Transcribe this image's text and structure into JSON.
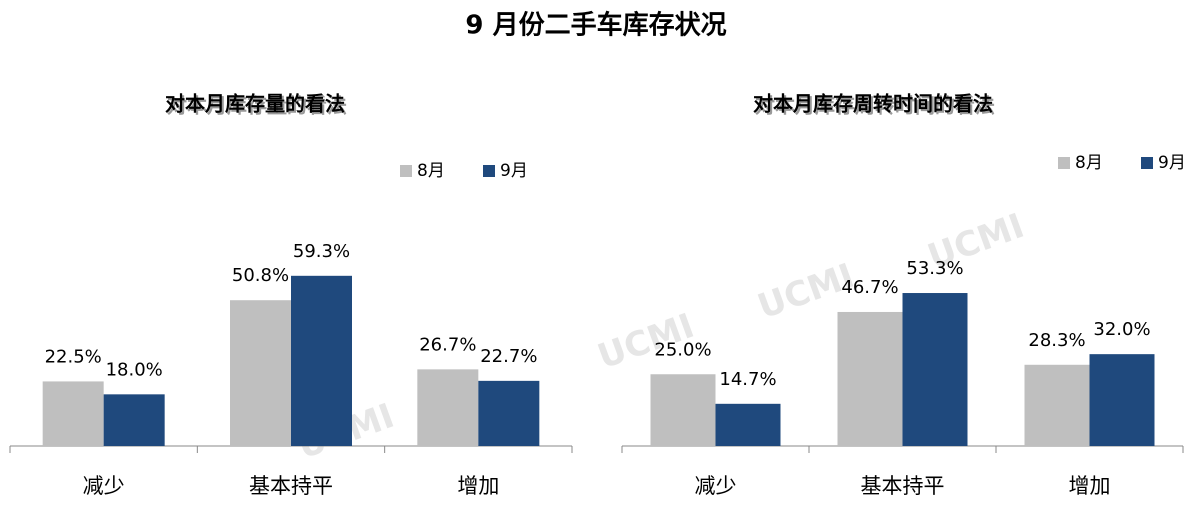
{
  "title": "9 月份二手车库存状况",
  "watermark": "UCMI",
  "chart_data": [
    {
      "type": "bar",
      "title": "对本月库存量的看法",
      "categories": [
        "减少",
        "基本持平",
        "增加"
      ],
      "series": [
        {
          "name": "8月",
          "color": "#bfbfbf",
          "values": [
            22.5,
            50.8,
            26.7
          ],
          "value_labels": [
            "22.5%",
            "50.8%",
            "26.7%"
          ]
        },
        {
          "name": "9月",
          "color": "#1f497d",
          "values": [
            18.0,
            59.3,
            22.7
          ],
          "value_labels": [
            "18.0%",
            "59.3%",
            "22.7%"
          ]
        }
      ]
    },
    {
      "type": "bar",
      "title": "对本月库存周转时间的看法",
      "categories": [
        "减少",
        "基本持平",
        "增加"
      ],
      "series": [
        {
          "name": "8月",
          "color": "#bfbfbf",
          "values": [
            25.0,
            46.7,
            28.3
          ],
          "value_labels": [
            "25.0%",
            "46.7%",
            "28.3%"
          ]
        },
        {
          "name": "9月",
          "color": "#1f497d",
          "values": [
            14.7,
            53.3,
            32.0
          ],
          "value_labels": [
            "14.7%",
            "53.3%",
            "32.0%"
          ]
        }
      ]
    }
  ]
}
